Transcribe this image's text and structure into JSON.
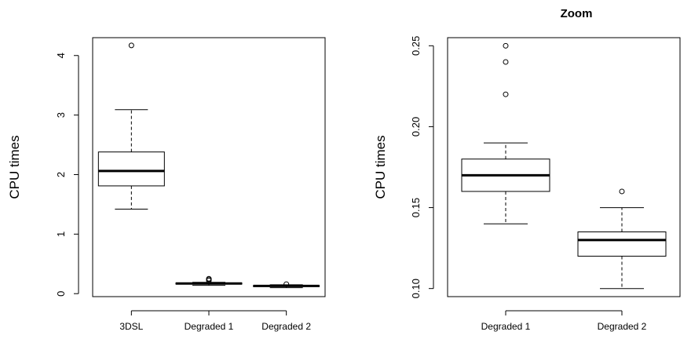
{
  "chart_data": [
    {
      "type": "box",
      "title": "",
      "xlabel": "",
      "ylabel": "CPU times",
      "ylim": [
        -0.05,
        4.3
      ],
      "yticks": [
        "0",
        "1",
        "2",
        "3",
        "4"
      ],
      "categories": [
        "3DSL",
        "Degraded 1",
        "Degraded 2"
      ],
      "boxes": [
        {
          "whisker_low": 1.42,
          "q1": 1.81,
          "median": 2.06,
          "q3": 2.38,
          "whisker_high": 3.09,
          "outliers": [
            4.17
          ]
        },
        {
          "whisker_low": 0.14,
          "q1": 0.16,
          "median": 0.17,
          "q3": 0.18,
          "whisker_high": 0.19,
          "outliers": [
            0.22,
            0.24,
            0.25
          ]
        },
        {
          "whisker_low": 0.1,
          "q1": 0.12,
          "median": 0.13,
          "q3": 0.135,
          "whisker_high": 0.15,
          "outliers": [
            0.16
          ]
        }
      ]
    },
    {
      "type": "box",
      "title": "Zoom",
      "xlabel": "",
      "ylabel": "CPU times",
      "ylim": [
        0.095,
        0.255
      ],
      "yticks": [
        "0.10",
        "0.15",
        "0.20",
        "0.25"
      ],
      "categories": [
        "Degraded 1",
        "Degraded 2"
      ],
      "boxes": [
        {
          "whisker_low": 0.14,
          "q1": 0.16,
          "median": 0.17,
          "q3": 0.18,
          "whisker_high": 0.19,
          "outliers": [
            0.22,
            0.24,
            0.25
          ]
        },
        {
          "whisker_low": 0.1,
          "q1": 0.12,
          "median": 0.13,
          "q3": 0.135,
          "whisker_high": 0.15,
          "outliers": [
            0.16
          ]
        }
      ]
    }
  ]
}
